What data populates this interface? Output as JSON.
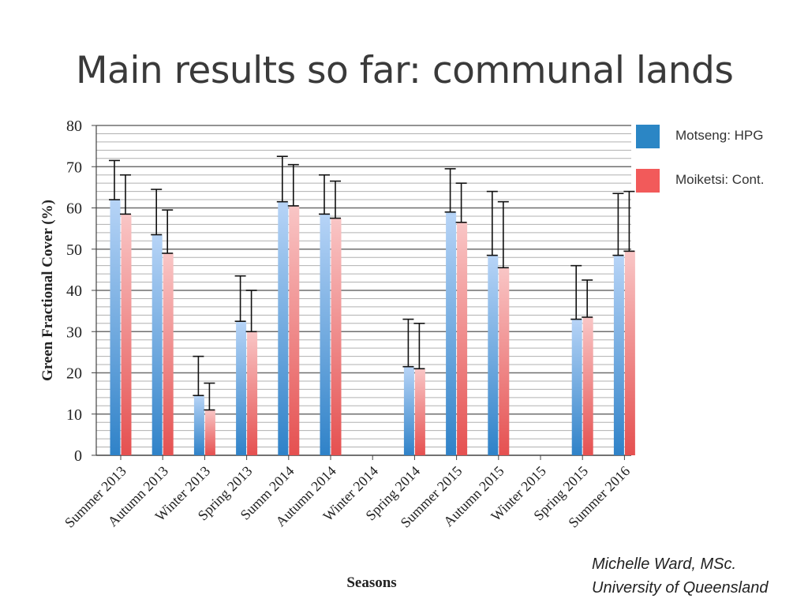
{
  "slide": {
    "title": "Main results so far: communal lands",
    "credit_line1": "Michelle Ward, MSc.",
    "credit_line2": "University of Queensland"
  },
  "colors": {
    "series1": "#2b86c5",
    "series2": "#f25a5a",
    "grid": "#8a8a8a",
    "text": "#333333"
  },
  "chart_data": {
    "type": "bar",
    "title": "",
    "xlabel": "Seasons",
    "ylabel": "Green Fractional Cover (%)",
    "ylim": [
      0,
      80
    ],
    "yticks": [
      0,
      10,
      20,
      30,
      40,
      50,
      60,
      70,
      80
    ],
    "grid": true,
    "legend_position": "right",
    "categories": [
      "Summer 2013",
      "Autumn 2013",
      "Winter 2013",
      "Spring 2013",
      "Summ 2014",
      "Autumn 2014",
      "Winter 2014",
      "Spring 2014",
      "Summer 2015",
      "Autumn 2015",
      "Winter 2015",
      "Spring 2015",
      "Summer 2016"
    ],
    "series": [
      {
        "name": "Motseng: HPG",
        "values": [
          62,
          53.5,
          14.5,
          32.5,
          61.5,
          58.5,
          null,
          21.5,
          59,
          48.5,
          null,
          33,
          48.5
        ],
        "error_upper": [
          71.5,
          64.5,
          24,
          43.5,
          72.5,
          68,
          null,
          33,
          69.5,
          64,
          null,
          46,
          63.5
        ]
      },
      {
        "name": "Moiketsi: Cont.",
        "values": [
          58.5,
          49,
          11,
          30,
          60.5,
          57.5,
          null,
          21,
          56.5,
          45.5,
          null,
          33.5,
          49.5
        ],
        "error_upper": [
          68,
          59.5,
          17.5,
          40,
          70.5,
          66.5,
          null,
          32,
          66,
          61.5,
          null,
          42.5,
          64
        ]
      }
    ]
  }
}
